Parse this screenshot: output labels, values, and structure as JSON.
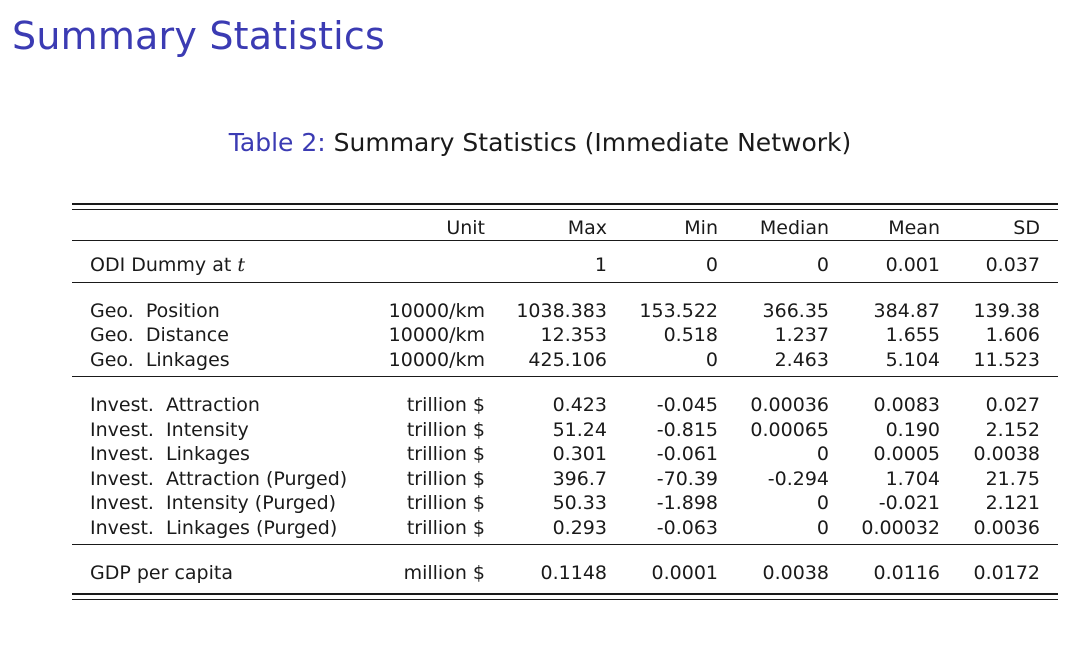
{
  "slide": {
    "title": "Summary Statistics"
  },
  "caption": {
    "label": "Table 2:",
    "text": "Summary Statistics (Immediate Network)"
  },
  "table": {
    "headers": {
      "label": "",
      "unit": "Unit",
      "max": "Max",
      "min": "Min",
      "median": "Median",
      "mean": "Mean",
      "sd": "SD"
    },
    "groups": [
      {
        "rows": [
          {
            "label": "ODI Dummy at ",
            "label_var": "t",
            "unit": "",
            "max": "1",
            "min": "0",
            "median": "0",
            "mean": "0.001",
            "sd": "0.037"
          }
        ]
      },
      {
        "rows": [
          {
            "label": "Geo.  Position",
            "unit": "10000/km",
            "max": "1038.383",
            "min": "153.522",
            "median": "366.35",
            "mean": "384.87",
            "sd": "139.38"
          },
          {
            "label": "Geo.  Distance",
            "unit": "10000/km",
            "max": "12.353",
            "min": "0.518",
            "median": "1.237",
            "mean": "1.655",
            "sd": "1.606"
          },
          {
            "label": "Geo.  Linkages",
            "unit": "10000/km",
            "max": "425.106",
            "min": "0",
            "median": "2.463",
            "mean": "5.104",
            "sd": "11.523"
          }
        ]
      },
      {
        "rows": [
          {
            "label": "Invest.  Attraction",
            "unit": "trillion $",
            "max": "0.423",
            "min": "-0.045",
            "median": "0.00036",
            "mean": "0.0083",
            "sd": "0.027"
          },
          {
            "label": "Invest.  Intensity",
            "unit": "trillion $",
            "max": "51.24",
            "min": "-0.815",
            "median": "0.00065",
            "mean": "0.190",
            "sd": "2.152"
          },
          {
            "label": "Invest.  Linkages",
            "unit": "trillion $",
            "max": "0.301",
            "min": "-0.061",
            "median": "0",
            "mean": "0.0005",
            "sd": "0.0038"
          },
          {
            "label": "Invest.  Attraction (Purged)",
            "unit": "trillion $",
            "max": "396.7",
            "min": "-70.39",
            "median": "-0.294",
            "mean": "1.704",
            "sd": "21.75"
          },
          {
            "label": "Invest.  Intensity (Purged)",
            "unit": "trillion $",
            "max": "50.33",
            "min": "-1.898",
            "median": "0",
            "mean": "-0.021",
            "sd": "2.121"
          },
          {
            "label": "Invest.  Linkages (Purged)",
            "unit": "trillion $",
            "max": "0.293",
            "min": "-0.063",
            "median": "0",
            "mean": "0.00032",
            "sd": "0.0036"
          }
        ]
      },
      {
        "rows": [
          {
            "label": "GDP per capita",
            "unit": "million $",
            "max": "0.1148",
            "min": "0.0001",
            "median": "0.0038",
            "mean": "0.0116",
            "sd": "0.0172"
          }
        ]
      }
    ]
  }
}
